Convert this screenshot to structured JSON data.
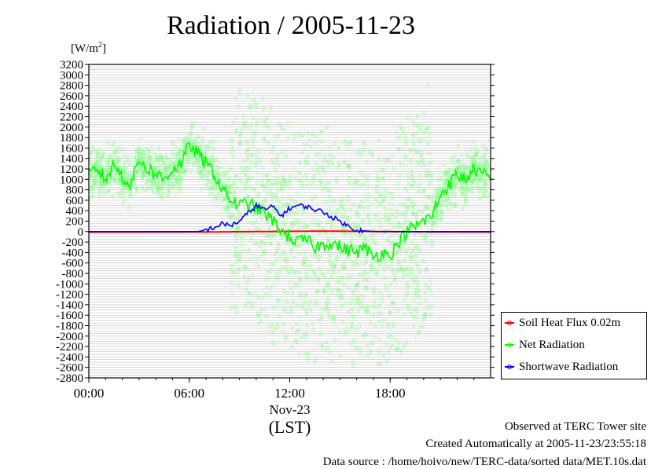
{
  "header": {
    "title": "Radiation / 2005-11-23",
    "unit_prefix": "[W/m",
    "unit_sup": "2",
    "unit_suffix": "]"
  },
  "footer": {
    "observed": "Observed at TERC Tower site",
    "created": "Created Automatically at 2005-11-23/23:55:18",
    "source": "Data source : /home/hoivo/new/TERC-data/sorted  data/MET.10s.dat"
  },
  "legend": {
    "items": [
      {
        "label": "Soil Heat Flux 0.02m",
        "color": "#ff0000"
      },
      {
        "label": "Net Radiation",
        "color": "#00ff00"
      },
      {
        "label": "Shortwave Radiation",
        "color": "#0000ff"
      }
    ]
  },
  "chart_data": {
    "type": "line",
    "title": "Radiation / 2005-11-23",
    "ylabel": "[W/m2]",
    "xlabel": "(LST)",
    "ylim": [
      -2800,
      3200
    ],
    "yticks": [
      3200,
      3000,
      2800,
      2600,
      2400,
      2200,
      2000,
      1800,
      1600,
      1400,
      1200,
      1000,
      800,
      600,
      400,
      200,
      0,
      -200,
      -400,
      -600,
      -800,
      -1000,
      -1200,
      -1400,
      -1600,
      -1800,
      -2000,
      -2200,
      -2400,
      -2600,
      -2800
    ],
    "xlim": [
      0,
      24
    ],
    "xticks": [
      {
        "hour": 0,
        "label": "00:00"
      },
      {
        "hour": 6,
        "label": "06:00"
      },
      {
        "hour": 12,
        "label": "12:00"
      },
      {
        "hour": 18,
        "label": "18:00"
      }
    ],
    "x_date_label": "Nov-23",
    "grid": true,
    "legend_position": "bottom-right",
    "series": [
      {
        "name": "Soil Heat Flux 0.02m",
        "color": "#ff0000",
        "x": [
          0,
          3,
          6,
          8,
          10,
          12,
          14,
          16,
          18,
          20,
          22,
          24
        ],
        "y": [
          -10,
          -10,
          -8,
          -5,
          0,
          5,
          8,
          5,
          0,
          -5,
          -8,
          -10
        ]
      },
      {
        "name": "Net Radiation",
        "color": "#00ff00",
        "x": [
          0,
          0.5,
          1,
          1.5,
          2,
          2.5,
          3,
          3.5,
          4,
          4.5,
          5,
          5.5,
          6,
          6.5,
          7,
          7.5,
          8,
          8.5,
          9,
          9.5,
          10,
          10.5,
          11,
          11.5,
          12,
          12.5,
          13,
          13.5,
          14,
          14.5,
          15,
          15.5,
          16,
          16.5,
          17,
          17.5,
          18,
          18.5,
          19,
          19.5,
          20,
          20.5,
          21,
          21.5,
          22,
          22.5,
          23,
          23.5,
          24
        ],
        "y": [
          1100,
          1200,
          1000,
          1300,
          1050,
          900,
          1400,
          1200,
          1100,
          1000,
          1200,
          1300,
          1650,
          1500,
          1300,
          1100,
          800,
          600,
          500,
          550,
          450,
          350,
          200,
          0,
          -100,
          -200,
          -150,
          -300,
          -250,
          -200,
          -300,
          -350,
          -400,
          -300,
          -500,
          -400,
          -450,
          -200,
          0,
          100,
          200,
          300,
          700,
          900,
          1100,
          1000,
          1200,
          1100,
          1000
        ]
      },
      {
        "name": "Shortwave Radiation",
        "color": "#0000ff",
        "x": [
          0,
          4,
          6.5,
          7,
          7.5,
          8,
          8.5,
          9,
          9.5,
          10,
          10.5,
          11,
          11.5,
          12,
          12.5,
          13,
          13.5,
          14,
          14.5,
          15,
          15.5,
          16,
          17,
          20,
          24
        ],
        "y": [
          0,
          0,
          0,
          30,
          80,
          150,
          120,
          200,
          350,
          500,
          420,
          480,
          300,
          450,
          500,
          480,
          420,
          380,
          280,
          200,
          100,
          30,
          0,
          0,
          0
        ]
      }
    ],
    "scatter": {
      "name": "Net Radiation (raw)",
      "color": "#00ff00",
      "note": "dense cloud of 10-second samples around the Net Radiation line"
    }
  }
}
